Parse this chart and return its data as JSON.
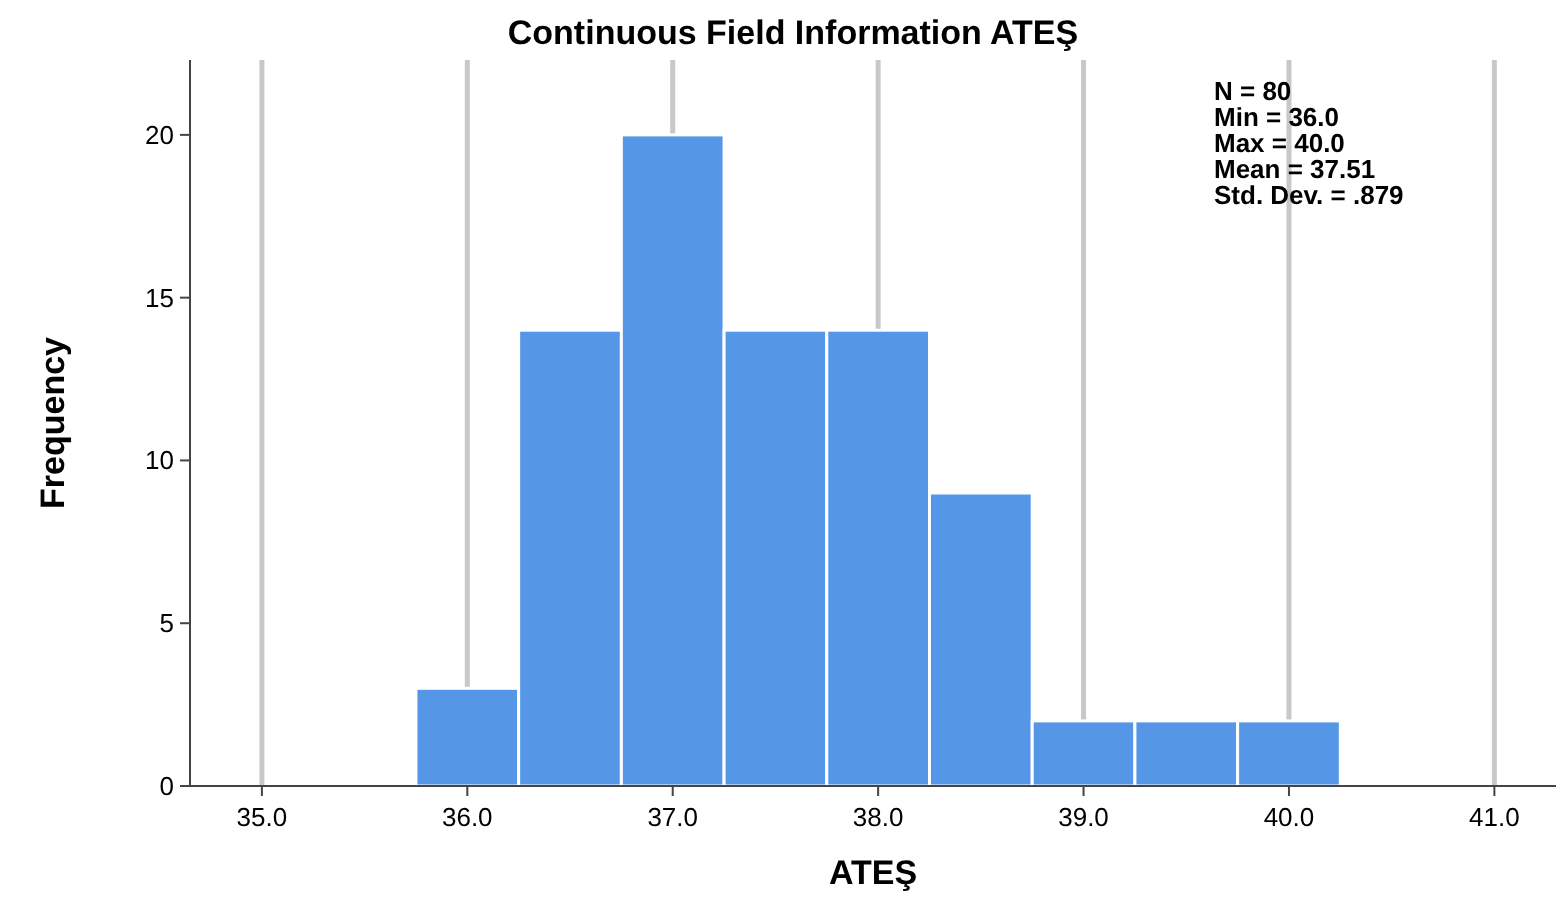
{
  "chart_data": {
    "type": "histogram",
    "title": "Continuous Field Information ATEŞ",
    "xlabel": "ATEŞ",
    "ylabel": "Frequency",
    "bins": [
      35.75,
      36.25,
      36.75,
      37.25,
      37.75,
      38.25,
      38.75,
      39.25,
      39.75,
      40.25
    ],
    "values": [
      3,
      14,
      20,
      14,
      14,
      9,
      2,
      2,
      2
    ],
    "color": "#5596e6",
    "xlim": [
      34.65,
      41.3
    ],
    "xticks": [
      {
        "value": 35,
        "label": "35.0"
      },
      {
        "value": 36,
        "label": "36.0"
      },
      {
        "value": 37,
        "label": "37.0"
      },
      {
        "value": 38,
        "label": "38.0"
      },
      {
        "value": 39,
        "label": "39.0"
      },
      {
        "value": 40,
        "label": "40.0"
      },
      {
        "value": 41,
        "label": "41.0"
      }
    ],
    "ylim": [
      0,
      22.3
    ],
    "yticks": [
      0,
      5,
      10,
      15,
      20
    ],
    "grid": "x",
    "annotations": [
      "N = 80",
      "Min = 36.0",
      "Max = 40.0",
      "Mean = 37.51",
      "Std. Dev. = .879"
    ]
  }
}
